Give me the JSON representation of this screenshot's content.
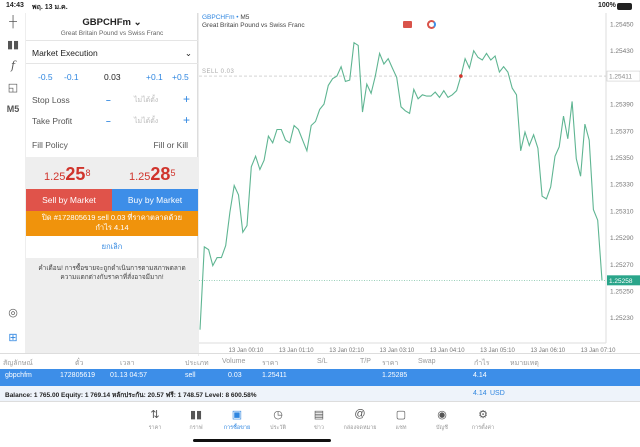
{
  "status": {
    "time": "14:43",
    "date": "พฤ. 13 ม.ค.",
    "battery": "100%"
  },
  "toolbar": {
    "timeframe": "M5"
  },
  "order": {
    "symbol": "GBPCHFm",
    "description": "Great Britain Pound vs Swiss Franc",
    "execution": "Market Execution",
    "volume_steps": [
      "-0.5",
      "-0.1",
      "+0.1",
      "+0.5"
    ],
    "volume": "0.03",
    "stop_loss_label": "Stop Loss",
    "stop_loss_value": "ไม่ได้ตั้ง",
    "take_profit_label": "Take Profit",
    "take_profit_value": "ไม่ได้ตั้ง",
    "fill_policy_label": "Fill Policy",
    "fill_policy_value": "Fill or Kill",
    "bid": {
      "prefix": "1.25",
      "big": "25",
      "small": "8"
    },
    "ask": {
      "prefix": "1.25",
      "big": "28",
      "small": "5"
    },
    "sell_label": "Sell by Market",
    "buy_label": "Buy by Market",
    "close_label": "ปิด #172805619 sell 0.03 ที่ราคาตลาดด้วยกำไร 4.14",
    "cancel_label": "ยกเลิก",
    "warning": "คำเตือน! การซื้อขายจะถูกดำเนินการตามสภาพตลาด ความแตกต่างกับราคาที่สั่งอาจมีมาก!",
    "colors": {
      "sell": "#e0534a",
      "buy": "#3d8ee8",
      "close": "#f0930c",
      "price": "#d0342c"
    }
  },
  "chart_data": {
    "type": "line",
    "title": "GBPCHFm",
    "timeframe": "M5",
    "subtitle": "Great Britain Pound vs Swiss Franc",
    "x_ticks": [
      "13 Jan 00:10",
      "13 Jan 01:10",
      "13 Jan 02:10",
      "13 Jan 03:10",
      "13 Jan 04:10",
      "13 Jan 05:10",
      "13 Jan 06:10",
      "13 Jan 07:10"
    ],
    "y_ticks": [
      "1.25450",
      "1.25430",
      "1.25390",
      "1.25370",
      "1.25350",
      "1.25330",
      "1.25310",
      "1.25290",
      "1.25270",
      "1.25250",
      "1.25230"
    ],
    "ylim": [
      1.2523,
      1.2545
    ],
    "values": [
      1.25221,
      1.25283,
      1.25281,
      1.25269,
      1.25275,
      1.25275,
      1.25284,
      1.25309,
      1.25329,
      1.25322,
      1.25294,
      1.25299,
      1.25343,
      1.25351,
      1.25341,
      1.25348,
      1.25366,
      1.25361,
      1.25371,
      1.25371,
      1.25363,
      1.25361,
      1.25374,
      1.25371,
      1.25363,
      1.25355,
      1.25374,
      1.25377,
      1.25386,
      1.2539,
      1.25404,
      1.25409,
      1.25411,
      1.25418,
      1.25407,
      1.25408,
      1.25436,
      1.25434,
      1.25384,
      1.25405,
      1.25398,
      1.25411,
      1.25428,
      1.2542,
      1.25424,
      1.25417,
      1.2541,
      1.25388,
      1.25385,
      1.25383,
      1.25401,
      1.25394,
      1.25397,
      1.25396,
      1.25396,
      1.25399,
      1.25395,
      1.254,
      1.25395,
      1.25397,
      1.254,
      1.25411,
      1.25424,
      1.25417,
      1.2543,
      1.25425,
      1.25423,
      1.25428,
      1.25423,
      1.25426,
      1.25414,
      1.25418,
      1.25414,
      1.25402,
      1.25397,
      1.25355,
      1.25369,
      1.25359,
      1.25367,
      1.25357,
      1.25321,
      1.25319,
      1.25328,
      1.25351,
      1.25358,
      1.25381,
      1.25364,
      1.25392,
      1.25349,
      1.25336,
      1.25375,
      1.25363,
      1.25311,
      1.25303,
      1.25258
    ],
    "entry_marker_index": 61,
    "sell_line": {
      "label": "SELL 0.03",
      "price": 1.25411,
      "price_label": "1.25411"
    },
    "bid_line": {
      "price": 1.25258,
      "price_label": "1.25258"
    },
    "line_color": "#5fb592",
    "grid": false
  },
  "table": {
    "headers": [
      "สัญลักษณ์",
      "ตั๋ว",
      "เวลา",
      "ประเภท",
      "Volume",
      "ราคา",
      "S/L",
      "T/P",
      "ราคา",
      "Swap",
      "กำไร",
      "หมายเหตุ"
    ],
    "row": {
      "symbol": "gbpchfm",
      "ticket": "172805619",
      "time": "01.13 04:57",
      "type": "sell",
      "volume": "0.03",
      "open_price": "1.25411",
      "price": "1.25285",
      "profit": "4.14"
    },
    "balance": "Balance: 1 765.00 Equity: 1 769.14 หลักประกัน: 20.57 ฟรี: 1 748.57 Level: 8 600.58%",
    "total_profit": "4.14",
    "currency": "USD"
  },
  "nav": [
    {
      "label": "ราคา",
      "icon": "arrows-icon"
    },
    {
      "label": "กราฟ",
      "icon": "candles-icon"
    },
    {
      "label": "การซื้อขาย",
      "icon": "trade-chart-icon",
      "active": true
    },
    {
      "label": "ประวัติ",
      "icon": "history-icon"
    },
    {
      "label": "ข่าว",
      "icon": "news-icon"
    },
    {
      "label": "กล่องจดหมาย",
      "icon": "mail-icon"
    },
    {
      "label": "แชท",
      "icon": "chat-icon"
    },
    {
      "label": "บัญชี",
      "icon": "account-icon"
    },
    {
      "label": "การตั้งค่า",
      "icon": "gear-icon"
    }
  ]
}
